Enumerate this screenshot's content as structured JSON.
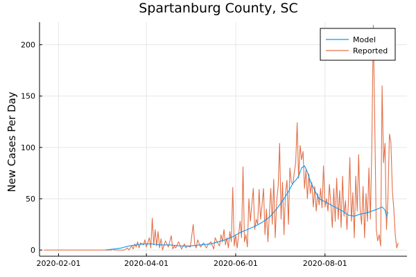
{
  "chart_data": {
    "type": "line",
    "title": "Spartanburg County, SC",
    "xlabel": "",
    "ylabel": "New Cases Per Day",
    "x_is_date": true,
    "xlim": [
      "2020-01-19",
      "2020-09-26"
    ],
    "ylim": [
      -6,
      222
    ],
    "x_ticks": [
      "2020-02-01",
      "2020-04-01",
      "2020-06-01",
      "2020-08-01"
    ],
    "y_ticks": [
      0,
      50,
      100,
      150,
      200
    ],
    "grid": true,
    "legend_position": "top-right",
    "colors": {
      "model": "#009AFA",
      "reported": "#E26F46"
    },
    "series": [
      {
        "name": "Model",
        "points": [
          [
            "2020-03-04",
            0
          ],
          [
            "2020-03-10",
            1
          ],
          [
            "2020-03-15",
            2
          ],
          [
            "2020-03-20",
            4
          ],
          [
            "2020-03-25",
            5
          ],
          [
            "2020-03-30",
            6
          ],
          [
            "2020-04-05",
            6
          ],
          [
            "2020-04-10",
            5
          ],
          [
            "2020-04-17",
            5
          ],
          [
            "2020-04-24",
            4
          ],
          [
            "2020-05-01",
            4
          ],
          [
            "2020-05-08",
            5
          ],
          [
            "2020-05-15",
            6
          ],
          [
            "2020-05-20",
            8
          ],
          [
            "2020-05-25",
            10
          ],
          [
            "2020-05-30",
            13
          ],
          [
            "2020-06-04",
            17
          ],
          [
            "2020-06-09",
            20
          ],
          [
            "2020-06-14",
            23
          ],
          [
            "2020-06-19",
            27
          ],
          [
            "2020-06-24",
            32
          ],
          [
            "2020-06-29",
            40
          ],
          [
            "2020-07-04",
            50
          ],
          [
            "2020-07-07",
            57
          ],
          [
            "2020-07-10",
            65
          ],
          [
            "2020-07-12",
            68
          ],
          [
            "2020-07-14",
            72
          ],
          [
            "2020-07-16",
            80
          ],
          [
            "2020-07-18",
            82
          ],
          [
            "2020-07-20",
            76
          ],
          [
            "2020-07-22",
            67
          ],
          [
            "2020-07-25",
            58
          ],
          [
            "2020-07-28",
            50
          ],
          [
            "2020-08-01",
            47
          ],
          [
            "2020-08-05",
            44
          ],
          [
            "2020-08-09",
            41
          ],
          [
            "2020-08-13",
            38
          ],
          [
            "2020-08-17",
            34
          ],
          [
            "2020-08-21",
            33
          ],
          [
            "2020-08-25",
            35
          ],
          [
            "2020-08-29",
            36
          ],
          [
            "2020-09-02",
            38
          ],
          [
            "2020-09-06",
            40
          ],
          [
            "2020-09-09",
            42
          ],
          [
            "2020-09-11",
            39
          ],
          [
            "2020-09-12",
            33
          ],
          [
            "2020-09-13",
            37
          ]
        ]
      },
      {
        "name": "Reported",
        "points": [
          [
            "2020-01-22",
            0
          ],
          [
            "2020-02-15",
            0
          ],
          [
            "2020-03-08",
            0
          ],
          [
            "2020-03-09",
            1
          ],
          [
            "2020-03-10",
            0
          ],
          [
            "2020-03-17",
            0
          ],
          [
            "2020-03-19",
            2
          ],
          [
            "2020-03-20",
            0
          ],
          [
            "2020-03-22",
            4
          ],
          [
            "2020-03-23",
            1
          ],
          [
            "2020-03-24",
            6
          ],
          [
            "2020-03-25",
            3
          ],
          [
            "2020-03-26",
            8
          ],
          [
            "2020-03-27",
            2
          ],
          [
            "2020-03-28",
            7
          ],
          [
            "2020-03-30",
            5
          ],
          [
            "2020-03-31",
            10
          ],
          [
            "2020-04-01",
            3
          ],
          [
            "2020-04-03",
            12
          ],
          [
            "2020-04-04",
            2
          ],
          [
            "2020-04-05",
            31
          ],
          [
            "2020-04-06",
            5
          ],
          [
            "2020-04-07",
            20
          ],
          [
            "2020-04-08",
            4
          ],
          [
            "2020-04-09",
            18
          ],
          [
            "2020-04-10",
            2
          ],
          [
            "2020-04-11",
            11
          ],
          [
            "2020-04-12",
            0
          ],
          [
            "2020-04-14",
            9
          ],
          [
            "2020-04-16",
            3
          ],
          [
            "2020-04-18",
            14
          ],
          [
            "2020-04-19",
            1
          ],
          [
            "2020-04-20",
            4
          ],
          [
            "2020-04-21",
            2
          ],
          [
            "2020-04-23",
            8
          ],
          [
            "2020-04-25",
            1
          ],
          [
            "2020-04-27",
            6
          ],
          [
            "2020-04-28",
            2
          ],
          [
            "2020-04-29",
            4
          ],
          [
            "2020-05-01",
            3
          ],
          [
            "2020-05-03",
            25
          ],
          [
            "2020-05-04",
            6
          ],
          [
            "2020-05-05",
            2
          ],
          [
            "2020-05-06",
            10
          ],
          [
            "2020-05-08",
            3
          ],
          [
            "2020-05-10",
            7
          ],
          [
            "2020-05-12",
            2
          ],
          [
            "2020-05-13",
            5
          ],
          [
            "2020-05-15",
            8
          ],
          [
            "2020-05-17",
            1
          ],
          [
            "2020-05-18",
            12
          ],
          [
            "2020-05-20",
            6
          ],
          [
            "2020-05-21",
            4
          ],
          [
            "2020-05-22",
            15
          ],
          [
            "2020-05-23",
            8
          ],
          [
            "2020-05-24",
            20
          ],
          [
            "2020-05-25",
            5
          ],
          [
            "2020-05-26",
            12
          ],
          [
            "2020-05-27",
            2
          ],
          [
            "2020-05-28",
            18
          ],
          [
            "2020-05-29",
            8
          ],
          [
            "2020-05-30",
            61
          ],
          [
            "2020-05-31",
            4
          ],
          [
            "2020-06-01",
            15
          ],
          [
            "2020-06-02",
            2
          ],
          [
            "2020-06-04",
            28
          ],
          [
            "2020-06-05",
            12
          ],
          [
            "2020-06-06",
            81
          ],
          [
            "2020-06-07",
            8
          ],
          [
            "2020-06-08",
            15
          ],
          [
            "2020-06-09",
            3
          ],
          [
            "2020-06-10",
            50
          ],
          [
            "2020-06-11",
            28
          ],
          [
            "2020-06-13",
            60
          ],
          [
            "2020-06-14",
            20
          ],
          [
            "2020-06-15",
            30
          ],
          [
            "2020-06-16",
            25
          ],
          [
            "2020-06-17",
            59
          ],
          [
            "2020-06-18",
            30
          ],
          [
            "2020-06-19",
            44
          ],
          [
            "2020-06-20",
            60
          ],
          [
            "2020-06-21",
            15
          ],
          [
            "2020-06-22",
            40
          ],
          [
            "2020-06-23",
            8
          ],
          [
            "2020-06-24",
            35
          ],
          [
            "2020-06-25",
            60
          ],
          [
            "2020-06-26",
            25
          ],
          [
            "2020-06-27",
            69
          ],
          [
            "2020-06-28",
            12
          ],
          [
            "2020-06-29",
            48
          ],
          [
            "2020-06-30",
            62
          ],
          [
            "2020-07-01",
            104
          ],
          [
            "2020-07-02",
            30
          ],
          [
            "2020-07-03",
            66
          ],
          [
            "2020-07-04",
            15
          ],
          [
            "2020-07-05",
            55
          ],
          [
            "2020-07-06",
            68
          ],
          [
            "2020-07-07",
            25
          ],
          [
            "2020-07-08",
            80
          ],
          [
            "2020-07-09",
            66
          ],
          [
            "2020-07-10",
            64
          ],
          [
            "2020-07-11",
            75
          ],
          [
            "2020-07-12",
            85
          ],
          [
            "2020-07-13",
            124
          ],
          [
            "2020-07-14",
            70
          ],
          [
            "2020-07-15",
            102
          ],
          [
            "2020-07-16",
            88
          ],
          [
            "2020-07-17",
            96
          ],
          [
            "2020-07-18",
            60
          ],
          [
            "2020-07-19",
            78
          ],
          [
            "2020-07-20",
            50
          ],
          [
            "2020-07-21",
            74
          ],
          [
            "2020-07-22",
            55
          ],
          [
            "2020-07-23",
            66
          ],
          [
            "2020-07-24",
            42
          ],
          [
            "2020-07-25",
            62
          ],
          [
            "2020-07-26",
            38
          ],
          [
            "2020-07-27",
            55
          ],
          [
            "2020-07-28",
            44
          ],
          [
            "2020-07-29",
            60
          ],
          [
            "2020-07-30",
            41
          ],
          [
            "2020-07-31",
            82
          ],
          [
            "2020-08-01",
            42
          ],
          [
            "2020-08-02",
            50
          ],
          [
            "2020-08-03",
            38
          ],
          [
            "2020-08-04",
            64
          ],
          [
            "2020-08-05",
            45
          ],
          [
            "2020-08-06",
            22
          ],
          [
            "2020-08-07",
            60
          ],
          [
            "2020-08-08",
            28
          ],
          [
            "2020-08-09",
            70
          ],
          [
            "2020-08-10",
            30
          ],
          [
            "2020-08-11",
            58
          ],
          [
            "2020-08-12",
            22
          ],
          [
            "2020-08-13",
            72
          ],
          [
            "2020-08-14",
            33
          ],
          [
            "2020-08-15",
            48
          ],
          [
            "2020-08-16",
            20
          ],
          [
            "2020-08-17",
            46
          ],
          [
            "2020-08-18",
            90
          ],
          [
            "2020-08-19",
            28
          ],
          [
            "2020-08-20",
            56
          ],
          [
            "2020-08-21",
            12
          ],
          [
            "2020-08-22",
            72
          ],
          [
            "2020-08-23",
            38
          ],
          [
            "2020-08-24",
            93
          ],
          [
            "2020-08-25",
            40
          ],
          [
            "2020-08-26",
            25
          ],
          [
            "2020-08-27",
            62
          ],
          [
            "2020-08-28",
            12
          ],
          [
            "2020-08-29",
            55
          ],
          [
            "2020-08-30",
            28
          ],
          [
            "2020-08-31",
            80
          ],
          [
            "2020-09-01",
            30
          ],
          [
            "2020-09-02",
            100
          ],
          [
            "2020-09-03",
            219
          ],
          [
            "2020-09-04",
            125
          ],
          [
            "2020-09-05",
            20
          ],
          [
            "2020-09-06",
            9
          ],
          [
            "2020-09-07",
            15
          ],
          [
            "2020-09-08",
            4
          ],
          [
            "2020-09-09",
            160
          ],
          [
            "2020-09-10",
            85
          ],
          [
            "2020-09-11",
            104
          ],
          [
            "2020-09-12",
            20
          ],
          [
            "2020-09-13",
            50
          ],
          [
            "2020-09-14",
            113
          ],
          [
            "2020-09-15",
            105
          ],
          [
            "2020-09-16",
            58
          ],
          [
            "2020-09-17",
            40
          ],
          [
            "2020-09-18",
            15
          ],
          [
            "2020-09-19",
            2
          ],
          [
            "2020-09-20",
            7
          ]
        ]
      }
    ]
  }
}
